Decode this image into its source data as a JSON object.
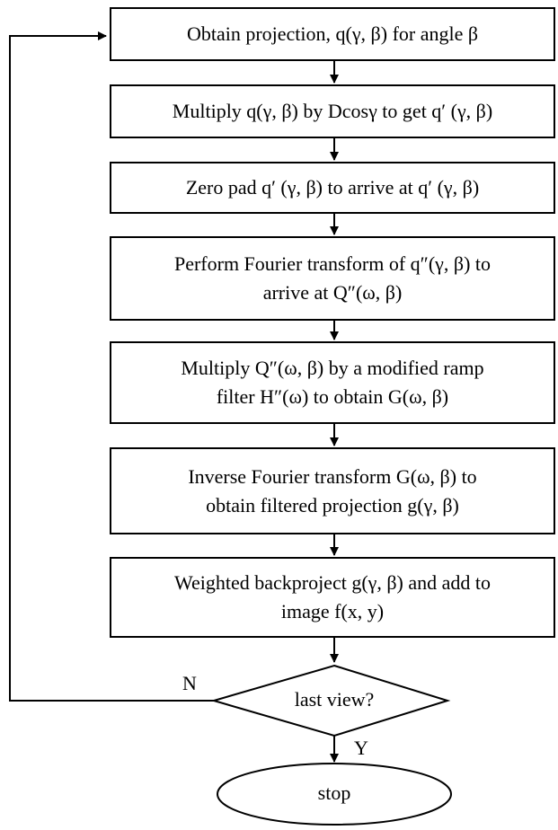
{
  "flowchart": {
    "steps": [
      {
        "label": "Obtain projection, q(γ, β) for angle β"
      },
      {
        "label": "Multiply q(γ, β) by Dcosγ to get q′ (γ, β)"
      },
      {
        "label": "Zero pad q′ (γ, β) to arrive at q′ (γ, β)"
      },
      {
        "label": "Perform Fourier transform of q″(γ, β) to\narrive at Q″(ω, β)"
      },
      {
        "label": "Multiply Q″(ω, β) by a modified ramp\nfilter H″(ω) to obtain G(ω, β)"
      },
      {
        "label": "Inverse Fourier transform G(ω, β) to\nobtain filtered projection g(γ, β)"
      },
      {
        "label": "Weighted backproject g(γ, β) and add to\nimage f(x, y)"
      }
    ],
    "decision": {
      "label": "last view?",
      "no_label": "N",
      "yes_label": "Y"
    },
    "terminal": {
      "label": "stop"
    }
  }
}
